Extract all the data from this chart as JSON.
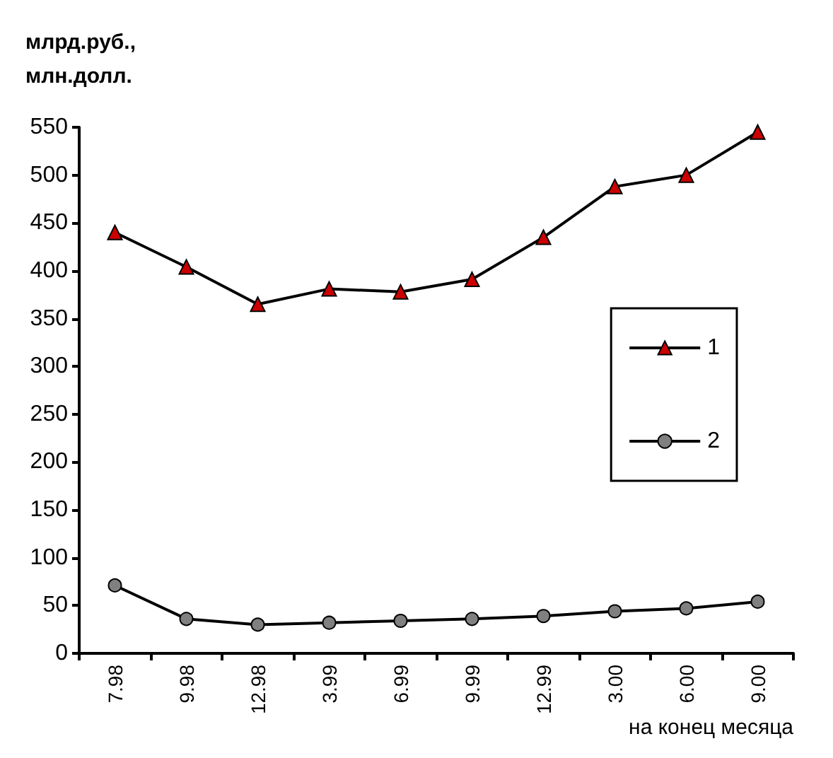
{
  "chart_data": {
    "type": "line",
    "ylabel": "млрд.руб.,\nмлн.долл.",
    "xlabel": "на конец месяца",
    "categories": [
      "7.98",
      "9.98",
      "12.98",
      "3.99",
      "6.99",
      "9.99",
      "12.99",
      "3.00",
      "6.00",
      "9.00"
    ],
    "series": [
      {
        "name": "1",
        "color": "#cc0000",
        "marker": "triangle",
        "values": [
          440,
          404,
          365,
          381,
          378,
          391,
          435,
          488,
          500,
          545
        ]
      },
      {
        "name": "2",
        "color": "#808080",
        "marker": "circle",
        "values": [
          71,
          36,
          30,
          32,
          34,
          36,
          39,
          44,
          47,
          54
        ]
      }
    ],
    "ylim": [
      0,
      550
    ],
    "yticks": [
      0,
      50,
      100,
      150,
      200,
      250,
      300,
      350,
      400,
      450,
      500,
      550
    ],
    "grid": false,
    "legend": "right",
    "line_style": "solid"
  }
}
